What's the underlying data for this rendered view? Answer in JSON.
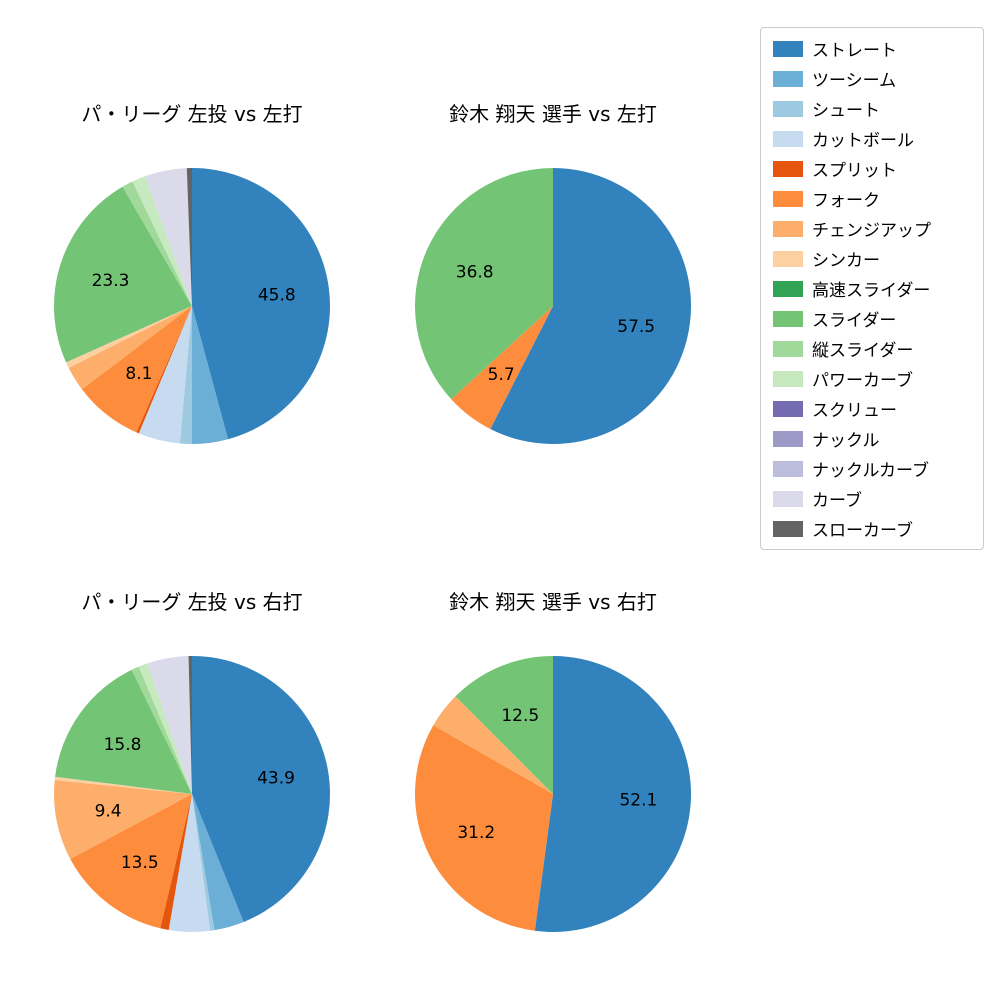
{
  "figure": {
    "background_color": "#ffffff"
  },
  "legend": {
    "items": [
      {
        "pitch": "ストレート",
        "color": "#3182bd"
      },
      {
        "pitch": "ツーシーム",
        "color": "#6baed6"
      },
      {
        "pitch": "シュート",
        "color": "#9ecae1"
      },
      {
        "pitch": "カットボール",
        "color": "#c6dbef"
      },
      {
        "pitch": "スプリット",
        "color": "#e6550d"
      },
      {
        "pitch": "フォーク",
        "color": "#fd8d3c"
      },
      {
        "pitch": "チェンジアップ",
        "color": "#fdae6b"
      },
      {
        "pitch": "シンカー",
        "color": "#fdd0a2"
      },
      {
        "pitch": "高速スライダー",
        "color": "#31a354"
      },
      {
        "pitch": "スライダー",
        "color": "#74c476"
      },
      {
        "pitch": "縦スライダー",
        "color": "#a1d99b"
      },
      {
        "pitch": "パワーカーブ",
        "color": "#c7e9c0"
      },
      {
        "pitch": "スクリュー",
        "color": "#756bb1"
      },
      {
        "pitch": "ナックル",
        "color": "#9e9ac8"
      },
      {
        "pitch": "ナックルカーブ",
        "color": "#bcbddc"
      },
      {
        "pitch": "カーブ",
        "color": "#dadaeb"
      },
      {
        "pitch": "スローカーブ",
        "color": "#636363"
      }
    ]
  },
  "chart_data": [
    {
      "type": "pie",
      "title": "パ・リーグ 左投 vs 左打",
      "direction": "clockwise",
      "start_angle": "top",
      "slices": [
        {
          "pitch": "ストレート",
          "value": 45.8,
          "label_shown": "45.8"
        },
        {
          "pitch": "ツーシーム",
          "value": 4.2,
          "label_shown": null
        },
        {
          "pitch": "シュート",
          "value": 1.4,
          "label_shown": null
        },
        {
          "pitch": "カットボール",
          "value": 4.9,
          "label_shown": null
        },
        {
          "pitch": "スプリット",
          "value": 0.3,
          "label_shown": null
        },
        {
          "pitch": "フォーク",
          "value": 8.1,
          "label_shown": "8.1"
        },
        {
          "pitch": "チェンジアップ",
          "value": 2.9,
          "label_shown": null
        },
        {
          "pitch": "シンカー",
          "value": 0.7,
          "label_shown": null
        },
        {
          "pitch": "スライダー",
          "value": 23.3,
          "label_shown": "23.3"
        },
        {
          "pitch": "縦スライダー",
          "value": 1.3,
          "label_shown": null
        },
        {
          "pitch": "パワーカーブ",
          "value": 1.6,
          "label_shown": null
        },
        {
          "pitch": "カーブ",
          "value": 4.9,
          "label_shown": null
        },
        {
          "pitch": "スローカーブ",
          "value": 0.6,
          "label_shown": null
        }
      ]
    },
    {
      "type": "pie",
      "title": "鈴木 翔天 選手 vs 左打",
      "direction": "clockwise",
      "start_angle": "top",
      "slices": [
        {
          "pitch": "ストレート",
          "value": 57.5,
          "label_shown": "57.5"
        },
        {
          "pitch": "フォーク",
          "value": 5.7,
          "label_shown": "5.7"
        },
        {
          "pitch": "スライダー",
          "value": 36.8,
          "label_shown": "36.8"
        }
      ]
    },
    {
      "type": "pie",
      "title": "パ・リーグ 左投 vs 右打",
      "direction": "clockwise",
      "start_angle": "top",
      "slices": [
        {
          "pitch": "ストレート",
          "value": 43.9,
          "label_shown": "43.9"
        },
        {
          "pitch": "ツーシーム",
          "value": 3.5,
          "label_shown": null
        },
        {
          "pitch": "シュート",
          "value": 0.5,
          "label_shown": null
        },
        {
          "pitch": "カットボール",
          "value": 4.8,
          "label_shown": null
        },
        {
          "pitch": "スプリット",
          "value": 1.0,
          "label_shown": null
        },
        {
          "pitch": "フォーク",
          "value": 13.5,
          "label_shown": "13.5"
        },
        {
          "pitch": "チェンジアップ",
          "value": 9.4,
          "label_shown": "9.4"
        },
        {
          "pitch": "シンカー",
          "value": 0.4,
          "label_shown": null
        },
        {
          "pitch": "スライダー",
          "value": 15.8,
          "label_shown": "15.8"
        },
        {
          "pitch": "縦スライダー",
          "value": 0.9,
          "label_shown": null
        },
        {
          "pitch": "パワーカーブ",
          "value": 1.1,
          "label_shown": null
        },
        {
          "pitch": "カーブ",
          "value": 4.8,
          "label_shown": null
        },
        {
          "pitch": "スローカーブ",
          "value": 0.4,
          "label_shown": null
        }
      ]
    },
    {
      "type": "pie",
      "title": "鈴木 翔天 選手 vs 右打",
      "direction": "clockwise",
      "start_angle": "top",
      "slices": [
        {
          "pitch": "ストレート",
          "value": 52.1,
          "label_shown": "52.1"
        },
        {
          "pitch": "フォーク",
          "value": 31.2,
          "label_shown": "31.2"
        },
        {
          "pitch": "チェンジアップ",
          "value": 4.2,
          "label_shown": null
        },
        {
          "pitch": "スライダー",
          "value": 12.5,
          "label_shown": "12.5"
        }
      ]
    }
  ]
}
